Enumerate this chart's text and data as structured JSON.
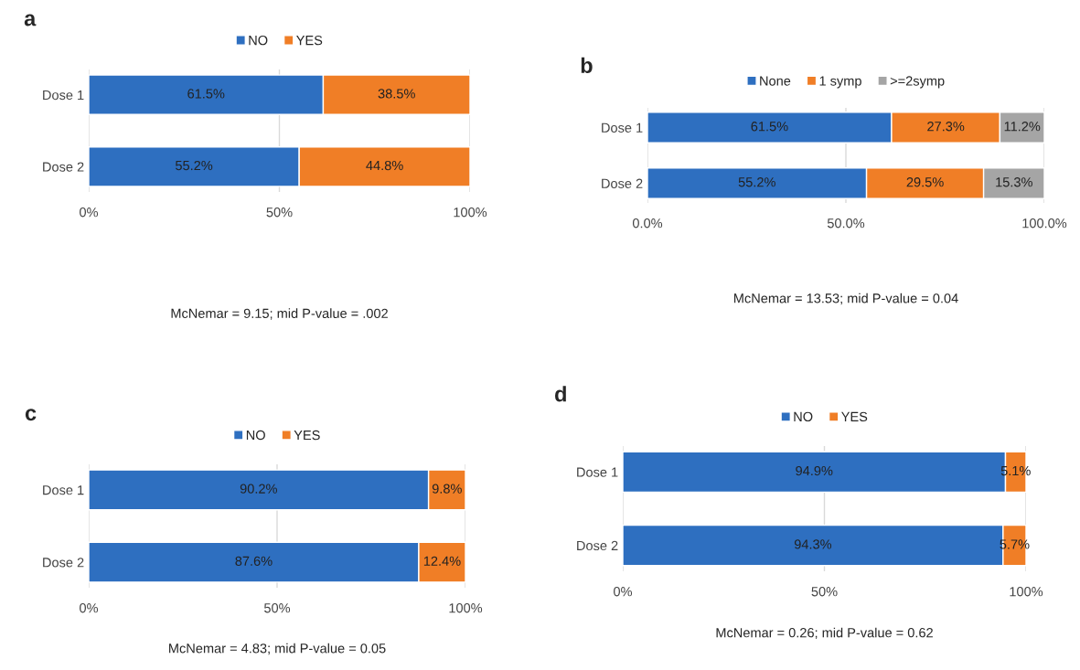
{
  "chart_data": [
    {
      "type": "bar",
      "orientation": "horizontal",
      "stacked": true,
      "title": "a",
      "categories": [
        "Dose 1",
        "Dose 2"
      ],
      "xlim": [
        0,
        100
      ],
      "xticks": [
        {
          "value": 0,
          "label": "0%"
        },
        {
          "value": 50,
          "label": "50%"
        },
        {
          "value": 100,
          "label": "100%"
        }
      ],
      "grid": "x",
      "legend": "top",
      "annotations": [
        "McNemar = 9.15; mid P-value = .002"
      ],
      "series": [
        {
          "name": "NO",
          "color": "#2e6fc0",
          "values": [
            61.5,
            55.2
          ],
          "value_labels": [
            "61.5%",
            "55.2%"
          ]
        },
        {
          "name": "YES",
          "color": "#f07e26",
          "values": [
            38.5,
            44.8
          ],
          "value_labels": [
            "38.5%",
            "44.8%"
          ]
        }
      ]
    },
    {
      "type": "bar",
      "orientation": "horizontal",
      "stacked": true,
      "title": "b",
      "categories": [
        "Dose 1",
        "Dose 2"
      ],
      "xlim": [
        0,
        100
      ],
      "xticks": [
        {
          "value": 0,
          "label": "0.0%"
        },
        {
          "value": 50,
          "label": "50.0%"
        },
        {
          "value": 100,
          "label": "100.0%"
        }
      ],
      "grid": "x",
      "legend": "top",
      "annotations": [
        "McNemar = 13.53; mid P-value = 0.04"
      ],
      "series": [
        {
          "name": "None",
          "color": "#2e6fc0",
          "values": [
            61.5,
            55.2
          ],
          "value_labels": [
            "61.5%",
            "55.2%"
          ]
        },
        {
          "name": "1 symp",
          "color": "#f07e26",
          "values": [
            27.3,
            29.5
          ],
          "value_labels": [
            "27.3%",
            "29.5%"
          ]
        },
        {
          "name": ">=2symp",
          "color": "#a5a5a5",
          "values": [
            11.2,
            15.3
          ],
          "value_labels": [
            "11.2%",
            "15.3%"
          ]
        }
      ]
    },
    {
      "type": "bar",
      "orientation": "horizontal",
      "stacked": true,
      "title": "c",
      "categories": [
        "Dose 1",
        "Dose 2"
      ],
      "xlim": [
        0,
        100
      ],
      "xticks": [
        {
          "value": 0,
          "label": "0%"
        },
        {
          "value": 50,
          "label": "50%"
        },
        {
          "value": 100,
          "label": "100%"
        }
      ],
      "grid": "x",
      "legend": "top",
      "annotations": [
        "McNemar = 4.83; mid P-value = 0.05"
      ],
      "series": [
        {
          "name": "NO",
          "color": "#2e6fc0",
          "values": [
            90.2,
            87.6
          ],
          "value_labels": [
            "90.2%",
            "87.6%"
          ]
        },
        {
          "name": "YES",
          "color": "#f07e26",
          "values": [
            9.8,
            12.4
          ],
          "value_labels": [
            "9.8%",
            "12.4%"
          ]
        }
      ]
    },
    {
      "type": "bar",
      "orientation": "horizontal",
      "stacked": true,
      "title": "d",
      "categories": [
        "Dose 1",
        "Dose 2"
      ],
      "xlim": [
        0,
        100
      ],
      "xticks": [
        {
          "value": 0,
          "label": "0%"
        },
        {
          "value": 50,
          "label": "50%"
        },
        {
          "value": 100,
          "label": "100%"
        }
      ],
      "grid": "x",
      "legend": "top",
      "annotations": [
        "McNemar = 0.26; mid P-value = 0.62"
      ],
      "series": [
        {
          "name": "NO",
          "color": "#2e6fc0",
          "values": [
            94.9,
            94.3
          ],
          "value_labels": [
            "94.9%",
            "94.3%"
          ]
        },
        {
          "name": "YES",
          "color": "#f07e26",
          "values": [
            5.1,
            5.7
          ],
          "value_labels": [
            "5.1%",
            "5.7%"
          ]
        }
      ]
    }
  ]
}
